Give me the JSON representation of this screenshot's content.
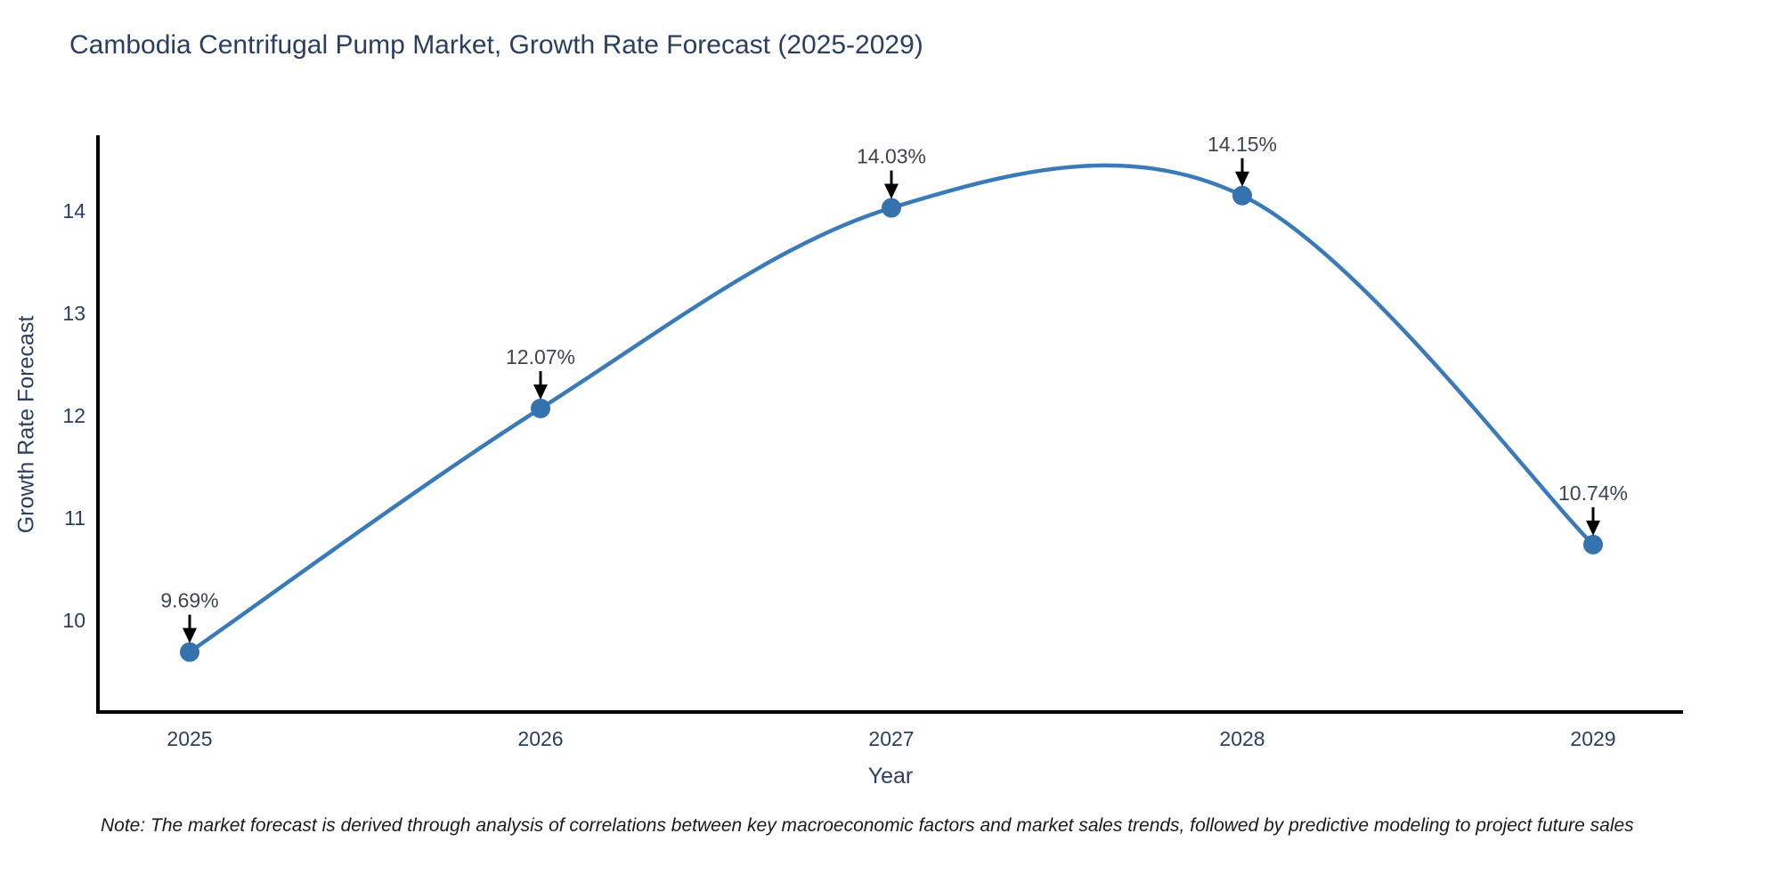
{
  "chart_data": {
    "type": "line",
    "title": "Cambodia Centrifugal Pump Market, Growth Rate Forecast (2025-2029)",
    "xlabel": "Year",
    "ylabel": "Growth Rate Forecast",
    "categories": [
      "2025",
      "2026",
      "2027",
      "2028",
      "2029"
    ],
    "series": [
      {
        "name": "Growth Rate Forecast",
        "values": [
          9.69,
          12.07,
          14.03,
          14.15,
          10.74
        ]
      }
    ],
    "point_labels": [
      "9.69%",
      "12.07%",
      "14.03%",
      "14.15%",
      "10.74%"
    ],
    "yticks": [
      10,
      11,
      12,
      13,
      14
    ],
    "ylim": [
      9.09,
      14.73
    ],
    "grid": false,
    "legend_position": "none",
    "line_shape": "spline",
    "annotation_style": "text-above-with-down-arrow",
    "colors": {
      "line": "#3a7ab8",
      "marker": "#3572ae",
      "axis": "#000000",
      "title_text": "#2a3f5f",
      "tick_text": "#2a3f5f",
      "label_text": "#3d4450",
      "arrow": "#000000"
    },
    "note": "Note: The market forecast is derived through analysis of correlations between key macroeconomic factors and market sales trends, followed by predictive modeling to project future sales"
  }
}
